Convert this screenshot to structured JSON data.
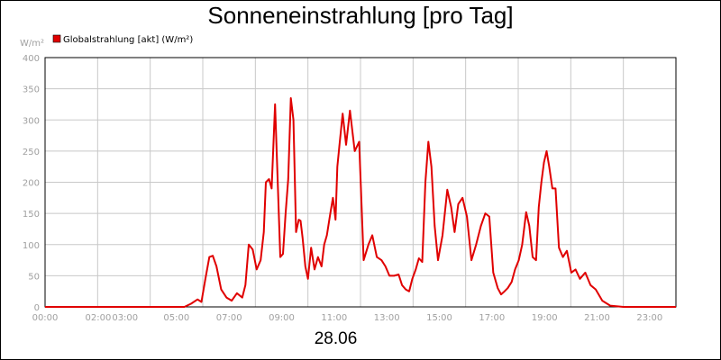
{
  "chart_data": {
    "type": "line",
    "title": "Sonneneinstrahlung [pro Tag]",
    "ylabel": "W/m²",
    "date_label": "28.06",
    "ylim": [
      0,
      400
    ],
    "yticks": [
      0,
      50,
      100,
      150,
      200,
      250,
      300,
      350,
      400
    ],
    "xlim": [
      0,
      24
    ],
    "x_tick_labels": [
      {
        "x": 0,
        "label": "00:00"
      },
      {
        "x": 2,
        "label": "02:00"
      },
      {
        "x": 3,
        "label": "03:00"
      },
      {
        "x": 5,
        "label": "05:00"
      },
      {
        "x": 7,
        "label": "07:00"
      },
      {
        "x": 9,
        "label": "09:00"
      },
      {
        "x": 11,
        "label": "11:00"
      },
      {
        "x": 13,
        "label": "13:00"
      },
      {
        "x": 15,
        "label": "15:00"
      },
      {
        "x": 17,
        "label": "17:00"
      },
      {
        "x": 19,
        "label": "19:00"
      },
      {
        "x": 21,
        "label": "21:00"
      },
      {
        "x": 23,
        "label": "23:00"
      }
    ],
    "gridlines": [
      0,
      2,
      4,
      6,
      8,
      10,
      12,
      14,
      16,
      18,
      20,
      22,
      24
    ],
    "grid": true,
    "legend": "top-left",
    "series": [
      {
        "name": "Globalstrahlung [akt] (W/m²)",
        "color": "#e00000",
        "x": [
          0,
          5.3,
          5.55,
          5.8,
          5.95,
          6.1,
          6.25,
          6.38,
          6.52,
          6.7,
          6.9,
          7.1,
          7.3,
          7.5,
          7.62,
          7.75,
          7.9,
          8.05,
          8.2,
          8.32,
          8.4,
          8.52,
          8.62,
          8.75,
          8.95,
          9.05,
          9.15,
          9.25,
          9.35,
          9.45,
          9.55,
          9.65,
          9.72,
          9.8,
          9.9,
          10.0,
          10.12,
          10.25,
          10.38,
          10.52,
          10.62,
          10.72,
          10.85,
          10.95,
          11.05,
          11.12,
          11.2,
          11.32,
          11.45,
          11.6,
          11.78,
          11.95,
          12.12,
          12.3,
          12.45,
          12.62,
          12.8,
          12.95,
          13.1,
          13.28,
          13.45,
          13.58,
          13.72,
          13.85,
          13.97,
          14.1,
          14.22,
          14.35,
          14.47,
          14.58,
          14.7,
          14.82,
          14.95,
          15.12,
          15.3,
          15.45,
          15.58,
          15.72,
          15.88,
          16.05,
          16.22,
          16.4,
          16.58,
          16.75,
          16.9,
          17.05,
          17.22,
          17.35,
          17.48,
          17.6,
          17.75,
          17.88,
          18.02,
          18.15,
          18.3,
          18.42,
          18.55,
          18.68,
          18.78,
          18.88,
          18.98,
          19.08,
          19.18,
          19.3,
          19.42,
          19.55,
          19.7,
          19.85,
          20.02,
          20.18,
          20.35,
          20.55,
          20.75,
          20.95,
          21.2,
          21.5,
          22.0,
          24.0
        ],
        "values": [
          0,
          0,
          5,
          12,
          8,
          45,
          80,
          82,
          65,
          28,
          15,
          10,
          22,
          15,
          35,
          100,
          92,
          60,
          75,
          120,
          200,
          205,
          190,
          325,
          80,
          85,
          150,
          205,
          335,
          300,
          120,
          140,
          138,
          110,
          65,
          45,
          95,
          60,
          80,
          65,
          100,
          115,
          150,
          175,
          140,
          225,
          260,
          310,
          260,
          315,
          250,
          265,
          75,
          100,
          115,
          80,
          75,
          65,
          50,
          50,
          52,
          35,
          28,
          25,
          45,
          60,
          78,
          72,
          200,
          265,
          225,
          130,
          75,
          115,
          188,
          160,
          120,
          165,
          175,
          145,
          75,
          100,
          130,
          150,
          145,
          55,
          30,
          20,
          25,
          30,
          40,
          60,
          75,
          100,
          152,
          130,
          80,
          75,
          160,
          200,
          232,
          250,
          225,
          190,
          190,
          95,
          80,
          90,
          55,
          60,
          45,
          55,
          35,
          28,
          10,
          2,
          0,
          0
        ]
      }
    ]
  }
}
